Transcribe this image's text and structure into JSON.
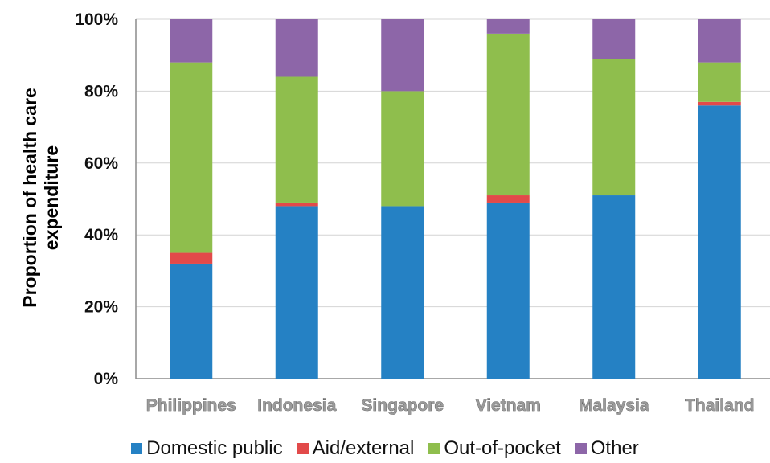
{
  "chart_data": {
    "type": "bar",
    "stacked": true,
    "categories": [
      "Philippines",
      "Indonesia",
      "Singapore",
      "Vietnam",
      "Malaysia",
      "Thailand"
    ],
    "series": [
      {
        "name": "Domestic public",
        "color": "#2581c4",
        "values": [
          32,
          48,
          48,
          49,
          51,
          76
        ]
      },
      {
        "name": "Aid/external",
        "color": "#e24a4a",
        "values": [
          3,
          1,
          0,
          2,
          0,
          1
        ]
      },
      {
        "name": "Out-of-pocket",
        "color": "#8fbe4d",
        "values": [
          53,
          35,
          32,
          45,
          38,
          11
        ]
      },
      {
        "name": "Other",
        "color": "#8d66a8",
        "values": [
          12,
          16,
          20,
          4,
          11,
          12
        ]
      }
    ],
    "ylabel": "Proportion of health care expenditure",
    "ylim": [
      0,
      100
    ],
    "yticks": [
      "0%",
      "20%",
      "40%",
      "60%",
      "80%",
      "100%"
    ],
    "grid": true,
    "legend_position": "bottom"
  }
}
